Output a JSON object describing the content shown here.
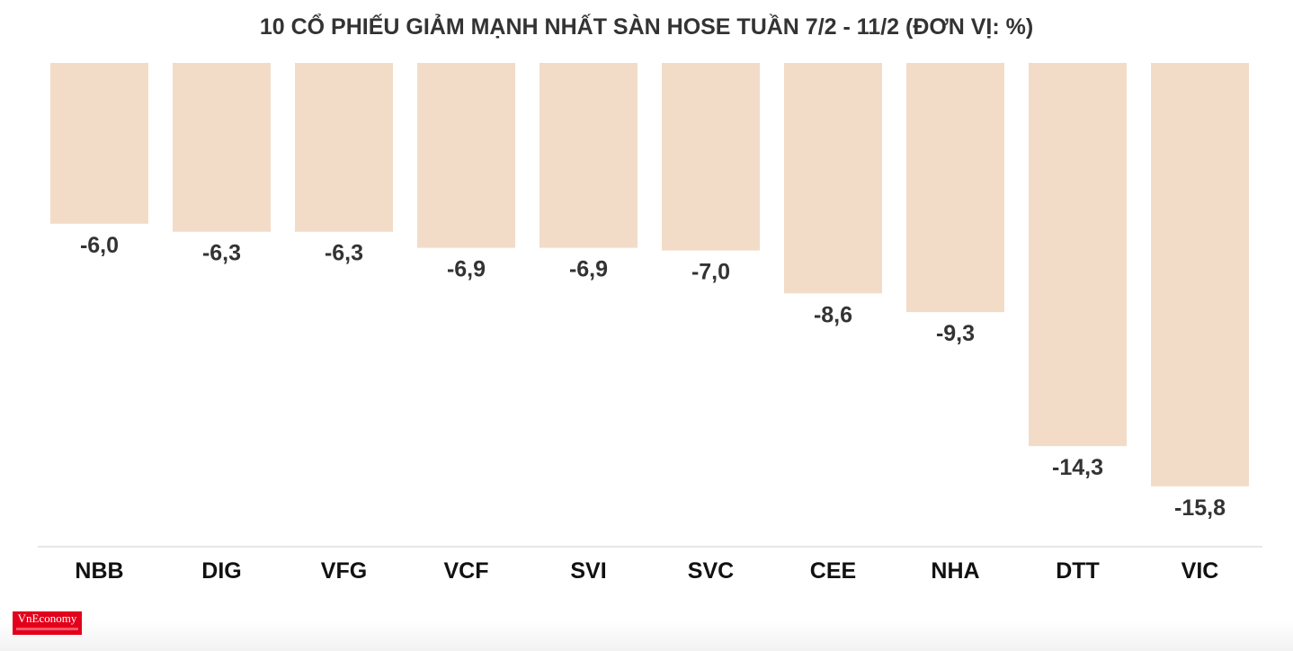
{
  "colors": {
    "bar": "#f2dcc8",
    "text": "#333333",
    "axis": "#dddddd",
    "logo": "#e3001b"
  },
  "logo": {
    "text": "VnEconomy"
  },
  "chart_data": {
    "type": "bar",
    "title": "10 CỔ PHIẾU GIẢM MẠNH NHẤT SÀN HOSE TUẦN 7/2 - 11/2 (ĐƠN VỊ: %)",
    "xlabel": "",
    "ylabel": "",
    "orientation": "vertical-down",
    "categories": [
      "NBB",
      "DIG",
      "VFG",
      "VCF",
      "SVI",
      "SVC",
      "CEE",
      "NHA",
      "DTT",
      "VIC"
    ],
    "values": [
      -6.0,
      -6.3,
      -6.3,
      -6.9,
      -6.9,
      -7.0,
      -8.6,
      -9.3,
      -14.3,
      -15.8
    ],
    "value_labels": [
      "-6,0",
      "-6,3",
      "-6,3",
      "-6,9",
      "-6,9",
      "-7,0",
      "-8,6",
      "-9,3",
      "-14,3",
      "-15,8"
    ],
    "ylim": [
      -18.1,
      0
    ],
    "grid": false,
    "legend": "none"
  }
}
